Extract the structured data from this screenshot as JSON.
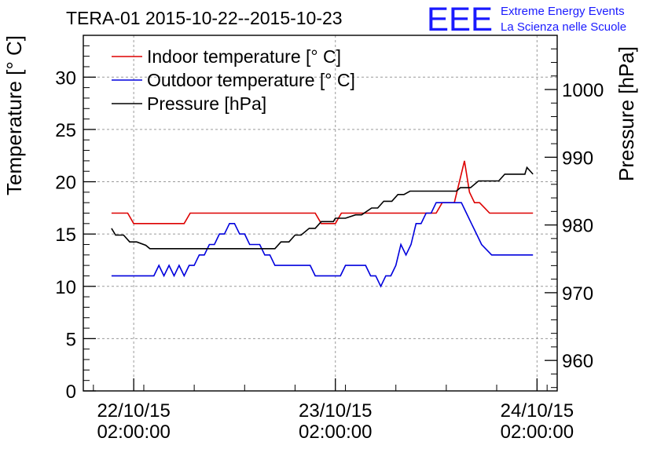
{
  "chart_data": {
    "type": "line",
    "title": "TERA-01 2015-10-22--2015-10-23",
    "logo": {
      "text": "EEE",
      "line1": "Extreme Energy Events",
      "line2": "La Scienza nelle Scuole",
      "color": "#1a1aff"
    },
    "ylabel": "Temperature [° C]",
    "ylabel_right": "Pressure [hPa]",
    "ylim": [
      0,
      34
    ],
    "ylim_right": [
      955.5,
      1008
    ],
    "xlim": [
      -5,
      42
    ],
    "yticks": [
      0,
      5,
      10,
      15,
      20,
      25,
      30
    ],
    "yticks_right": [
      960,
      970,
      980,
      990,
      1000
    ],
    "xticks": [
      {
        "x": 0,
        "date": "22/10/15",
        "time": "02:00:00"
      },
      {
        "x": 20,
        "date": "23/10/15",
        "time": "02:00:00"
      },
      {
        "x": 40,
        "date": "24/10/15",
        "time": "02:00:00"
      }
    ],
    "grid": true,
    "legend": [
      {
        "name": "Indoor temperature [° C]",
        "color": "#dd0000"
      },
      {
        "name": "Outdoor temperature [° C]",
        "color": "#0000dd"
      },
      {
        "name": "Pressure [hPa]",
        "color": "#000000"
      }
    ],
    "series": [
      {
        "name": "Indoor temperature [° C]",
        "color": "#dd0000",
        "axis": "left",
        "x": [
          -2.2,
          -0.6,
          0,
          5,
          5.6,
          18,
          18.6,
          20,
          20.6,
          25,
          25.6,
          30,
          30.6,
          31.8,
          32.3,
          32.8,
          33.3,
          33.8,
          34.3,
          34.8,
          35.3,
          37,
          37.6,
          39.6
        ],
        "y": [
          17,
          17,
          16,
          16,
          17,
          17,
          16,
          16,
          17,
          17,
          17,
          17,
          18,
          18,
          20,
          22,
          19,
          18,
          18,
          17.5,
          17,
          17,
          17,
          17
        ]
      },
      {
        "name": "Outdoor temperature [° C]",
        "color": "#0000dd",
        "axis": "left",
        "x": [
          -2.2,
          1.5,
          2,
          2.5,
          3,
          3.5,
          4,
          4.5,
          5,
          5.5,
          6,
          6.5,
          7,
          7.5,
          8,
          8.5,
          9,
          9.5,
          10,
          10.5,
          11,
          11.5,
          12,
          12.5,
          13,
          13.5,
          14,
          17.5,
          18,
          19.5,
          20.5,
          21,
          23,
          23.5,
          24,
          24.5,
          25,
          25.5,
          26,
          26.5,
          27,
          27.5,
          28,
          28.5,
          29,
          29.5,
          30,
          30.5,
          31,
          32.5,
          33,
          33.5,
          34,
          34.5,
          35.5,
          39.6
        ],
        "y": [
          11,
          11,
          11,
          12,
          11,
          12,
          11,
          12,
          11,
          12,
          12,
          13,
          13,
          14,
          14,
          15,
          15,
          16,
          16,
          15,
          15,
          14,
          14,
          14,
          13,
          13,
          12,
          12,
          11,
          11,
          11,
          12,
          12,
          11,
          11,
          10,
          11,
          11,
          12,
          14,
          13,
          14,
          16,
          16,
          17,
          17,
          18,
          18,
          18,
          18,
          17,
          16,
          15,
          14,
          13,
          13
        ]
      },
      {
        "name": "Pressure [hPa]",
        "color": "#000000",
        "axis": "right",
        "x": [
          -2.2,
          -1.8,
          -1,
          -0.4,
          0.3,
          1.2,
          1.6,
          14,
          14.6,
          15.4,
          16,
          16.6,
          17.4,
          18,
          18.6,
          19.8,
          20,
          21,
          22,
          22.6,
          23.6,
          24.2,
          24.8,
          25.6,
          26.2,
          26.8,
          27.4,
          27.8,
          29,
          31,
          32,
          32.4,
          33.4,
          34.2,
          35.3,
          36.2,
          36.8,
          37.6,
          38.3,
          38.8,
          39,
          39.6
        ],
        "y": [
          979.5,
          978.5,
          978.5,
          977.5,
          977.5,
          977,
          976.5,
          976.5,
          977.5,
          977.5,
          978.5,
          978.5,
          979.5,
          979.5,
          980.5,
          980.5,
          981,
          981,
          981.5,
          981.5,
          982.5,
          982.5,
          983.5,
          983.5,
          984.5,
          984.5,
          985,
          985,
          985,
          985,
          985,
          985.5,
          985.5,
          986.5,
          986.5,
          986.5,
          987.5,
          987.5,
          987.5,
          987.5,
          988.5,
          987.5
        ]
      }
    ]
  }
}
